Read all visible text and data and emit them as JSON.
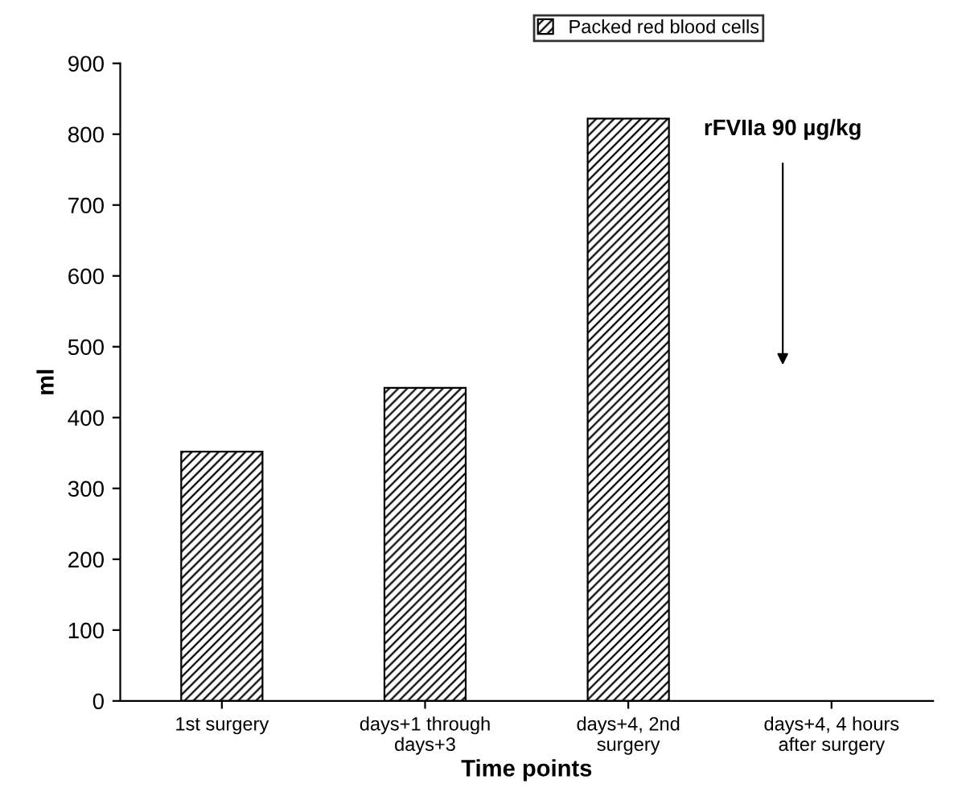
{
  "chart_data": {
    "type": "bar",
    "xlabel": "Time points",
    "ylabel": "ml",
    "categories": [
      "1st surgery",
      "days+1 through\ndays+3",
      "days+4, 2nd\nsurgery",
      "days+4, 4 hours\nafter surgery"
    ],
    "series": [
      {
        "name": "Packed red blood cells",
        "color": "#000000",
        "values": [
          352,
          442,
          822,
          null
        ]
      }
    ],
    "ylim": [
      0,
      900
    ],
    "yticks": [
      0,
      100,
      200,
      300,
      400,
      500,
      600,
      700,
      800,
      900
    ],
    "grid": false,
    "legend": "top",
    "annotations": [
      "rFVIIa 90 µg/kg"
    ]
  }
}
